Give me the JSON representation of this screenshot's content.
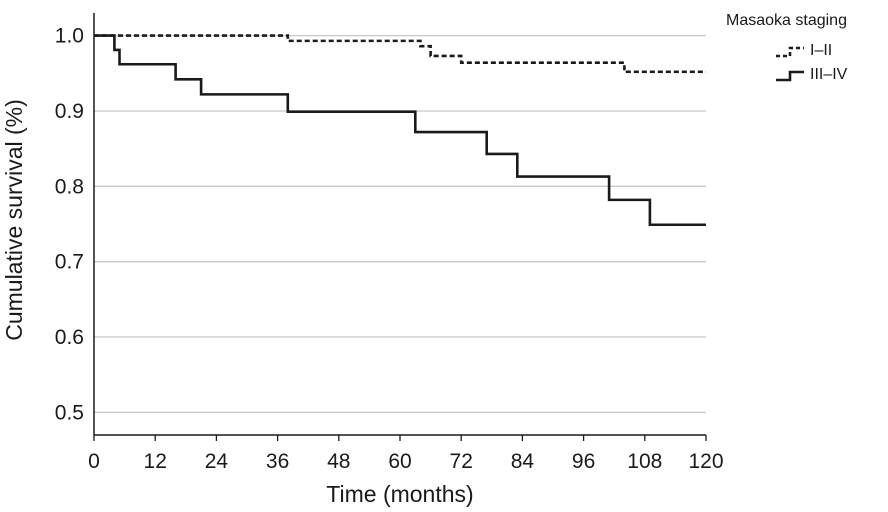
{
  "chart_data": {
    "type": "line",
    "step": true,
    "xlabel": "Time (months)",
    "ylabel": "Cumulative survival (%)",
    "xlim": [
      0,
      120
    ],
    "ylim": [
      0.47,
      1.03
    ],
    "x_ticks": [
      "0",
      "12",
      "24",
      "36",
      "48",
      "60",
      "72",
      "84",
      "96",
      "108",
      "120"
    ],
    "y_ticks": [
      "0.5",
      "0.6",
      "0.7",
      "0.8",
      "0.9",
      "1.0"
    ],
    "grid": "horizontal",
    "legend": {
      "title": "Masaoka staging",
      "placement": "top-right"
    },
    "series": [
      {
        "name": "I–II",
        "style": "dashed",
        "x": [
          0,
          38,
          64,
          66,
          72,
          104,
          120
        ],
        "y": [
          1.0,
          0.993,
          0.986,
          0.973,
          0.964,
          0.952,
          0.952
        ]
      },
      {
        "name": "III–IV",
        "style": "solid",
        "x": [
          0,
          4,
          5,
          16,
          21,
          38,
          63,
          77,
          83,
          101,
          109,
          120
        ],
        "y": [
          1.0,
          0.981,
          0.962,
          0.942,
          0.922,
          0.899,
          0.872,
          0.843,
          0.813,
          0.782,
          0.749,
          0.749
        ]
      }
    ],
    "colors": {
      "axis": "#1a1a1a",
      "grid": "#c8c8c8",
      "line": "#1a1a1a"
    }
  }
}
